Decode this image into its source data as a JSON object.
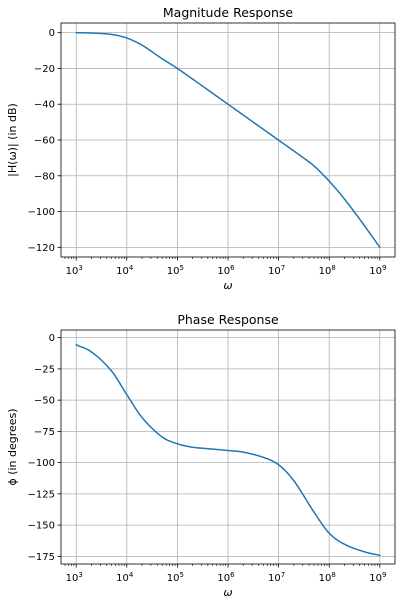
{
  "chart_data": [
    {
      "type": "line",
      "title": "Magnitude Response",
      "xlabel": "ω",
      "ylabel": "|H(ω)|  (in dB)",
      "xscale": "log",
      "xlim": [
        1000,
        1000000000
      ],
      "ylim": [
        -120,
        0
      ],
      "x_ticks": [
        1000,
        10000,
        100000,
        1000000,
        10000000,
        100000000,
        1000000000
      ],
      "x_tick_labels": [
        [
          "10",
          "3"
        ],
        [
          "10",
          "4"
        ],
        [
          "10",
          "5"
        ],
        [
          "10",
          "6"
        ],
        [
          "10",
          "7"
        ],
        [
          "10",
          "8"
        ],
        [
          "10",
          "9"
        ]
      ],
      "y_ticks": [
        0,
        -20,
        -40,
        -60,
        -80,
        -100,
        -120
      ],
      "y_tick_labels": [
        "0",
        "−20",
        "−40",
        "−60",
        "−80",
        "−100",
        "−120"
      ],
      "grid": true,
      "color": "#1f77b4",
      "series": [
        {
          "x": [
            1000,
            2000,
            5000,
            10000,
            20000,
            50000,
            100000,
            1000000,
            10000000,
            30000000,
            50000000,
            100000000,
            200000000,
            500000000,
            1000000000
          ],
          "y": [
            0,
            -0.2,
            -1,
            -3,
            -7,
            -14.6,
            -20,
            -40,
            -60.1,
            -69.7,
            -74.5,
            -83,
            -93,
            -108,
            -120
          ]
        }
      ]
    },
    {
      "type": "line",
      "title": "Phase Response",
      "xlabel": "ω",
      "ylabel": "ϕ  (in degrees)",
      "xscale": "log",
      "xlim": [
        1000,
        1000000000
      ],
      "ylim": [
        -175,
        0
      ],
      "x_ticks": [
        1000,
        10000,
        100000,
        1000000,
        10000000,
        100000000,
        1000000000
      ],
      "x_tick_labels": [
        [
          "10",
          "3"
        ],
        [
          "10",
          "4"
        ],
        [
          "10",
          "5"
        ],
        [
          "10",
          "6"
        ],
        [
          "10",
          "7"
        ],
        [
          "10",
          "8"
        ],
        [
          "10",
          "9"
        ]
      ],
      "y_ticks": [
        0,
        -25,
        -50,
        -75,
        -100,
        -125,
        -150,
        -175
      ],
      "y_tick_labels": [
        "0",
        "−25",
        "−50",
        "−75",
        "−100",
        "−125",
        "−150",
        "−175"
      ],
      "grid": true,
      "color": "#1f77b4",
      "series": [
        {
          "x": [
            1000,
            2000,
            5000,
            10000,
            20000,
            50000,
            100000,
            200000,
            500000,
            1000000,
            2000000,
            5000000,
            10000000,
            20000000,
            50000000,
            100000000,
            200000000,
            500000000,
            1000000000
          ],
          "y": [
            -5.7,
            -11.4,
            -26.7,
            -45.6,
            -63.9,
            -79.5,
            -84.9,
            -87.7,
            -89.2,
            -90.3,
            -91.6,
            -95.8,
            -101.7,
            -114.5,
            -139.6,
            -156.5,
            -165.3,
            -171.4,
            -174.2
          ]
        }
      ]
    }
  ]
}
